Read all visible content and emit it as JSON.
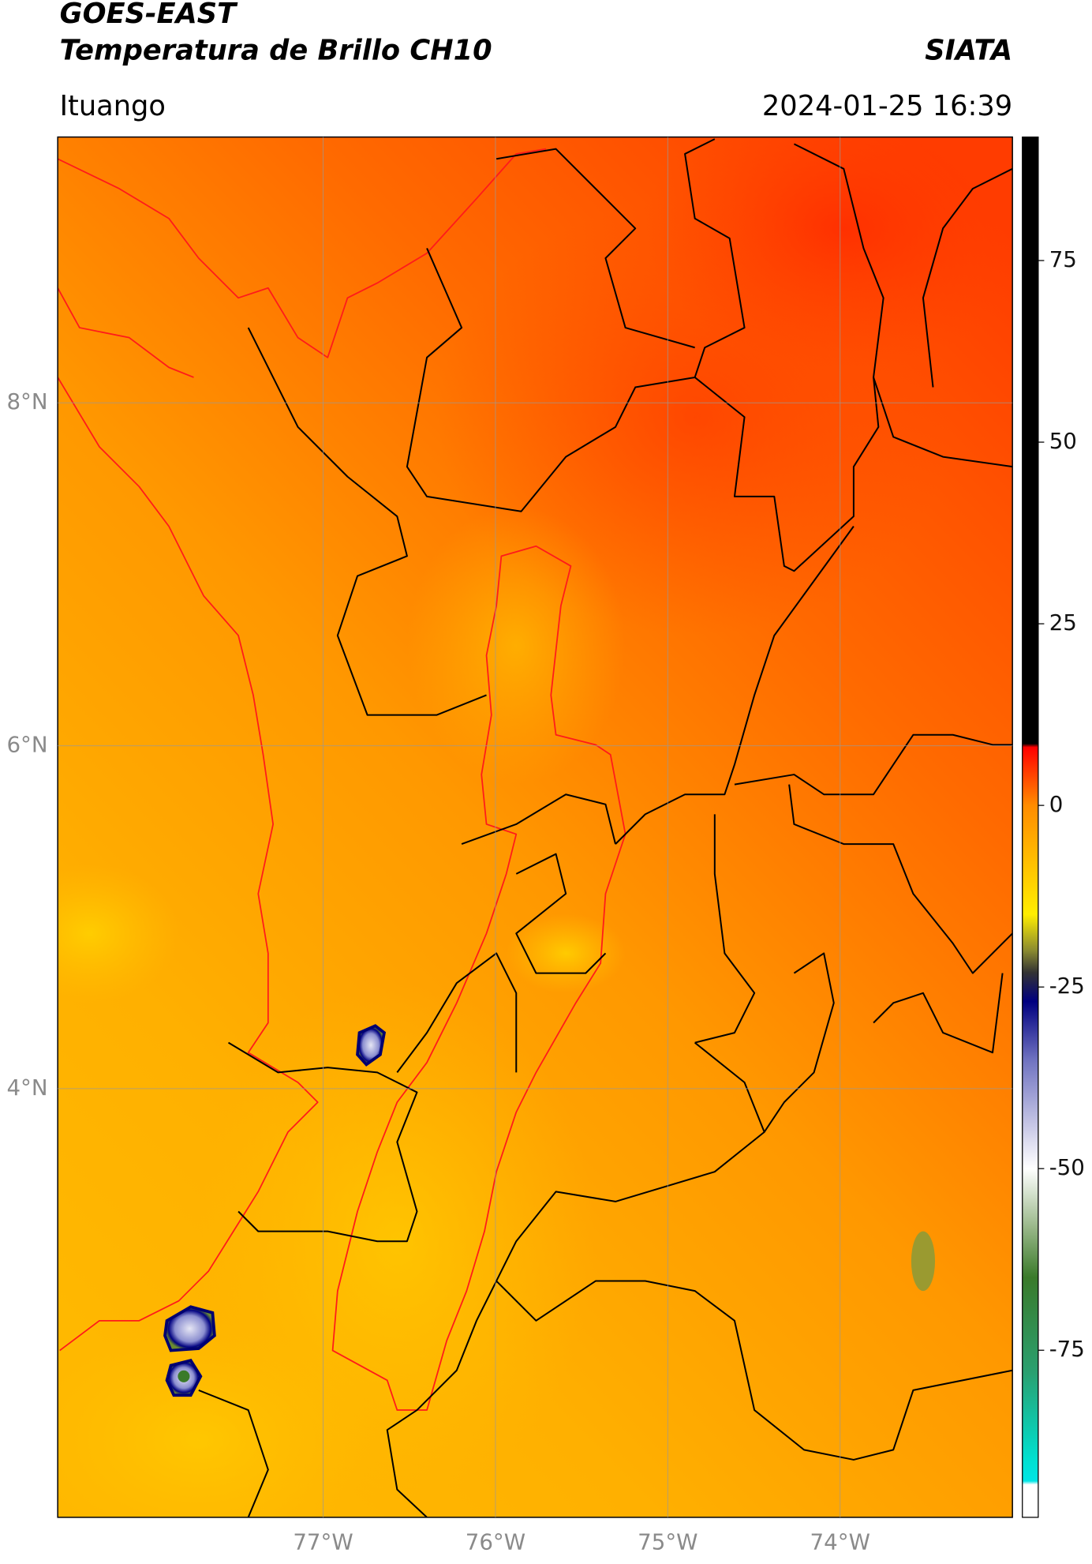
{
  "header": {
    "title": "GOES-EAST",
    "subtitle": "Temperatura de Brillo CH10",
    "source": "SIATA",
    "location": "Ituango",
    "datetime": "2024-01-25 16:39"
  },
  "map": {
    "xlim": [
      -78.54,
      -73.0
    ],
    "ylim": [
      1.5,
      9.55
    ],
    "xticks": [
      {
        "value": -77,
        "label": "77°W"
      },
      {
        "value": -76,
        "label": "76°W"
      },
      {
        "value": -75,
        "label": "75°W"
      },
      {
        "value": -74,
        "label": "74°W"
      }
    ],
    "yticks": [
      {
        "value": 4,
        "label": "4°N"
      },
      {
        "value": 6,
        "label": "6°N"
      },
      {
        "value": 8,
        "label": "8°N"
      }
    ],
    "grid": true
  },
  "colorbar": {
    "lim": [
      -98,
      92
    ],
    "ticks": [
      -75,
      -50,
      -25,
      0,
      25,
      50,
      75
    ],
    "stops": [
      {
        "value": 92,
        "color": "#000000"
      },
      {
        "value": 8.5,
        "color": "#000000"
      },
      {
        "value": 8,
        "color": "#ff0000"
      },
      {
        "value": 0,
        "color": "#ff8c00"
      },
      {
        "value": -15,
        "color": "#ffee00"
      },
      {
        "value": -20,
        "color": "#8a8a30"
      },
      {
        "value": -23,
        "color": "#333333"
      },
      {
        "value": -27,
        "color": "#000080"
      },
      {
        "value": -35,
        "color": "#6f72c0"
      },
      {
        "value": -45,
        "color": "#d0d0ea"
      },
      {
        "value": -50,
        "color": "#ffffff"
      },
      {
        "value": -58,
        "color": "#9ab88a"
      },
      {
        "value": -65,
        "color": "#3a7a2a"
      },
      {
        "value": -78,
        "color": "#2aa070"
      },
      {
        "value": -90,
        "color": "#00e0d0"
      },
      {
        "value": -93,
        "color": "#00e5e5"
      },
      {
        "value": -93.5,
        "color": "#ffffff"
      },
      {
        "value": -98,
        "color": "#ffffff"
      }
    ]
  }
}
